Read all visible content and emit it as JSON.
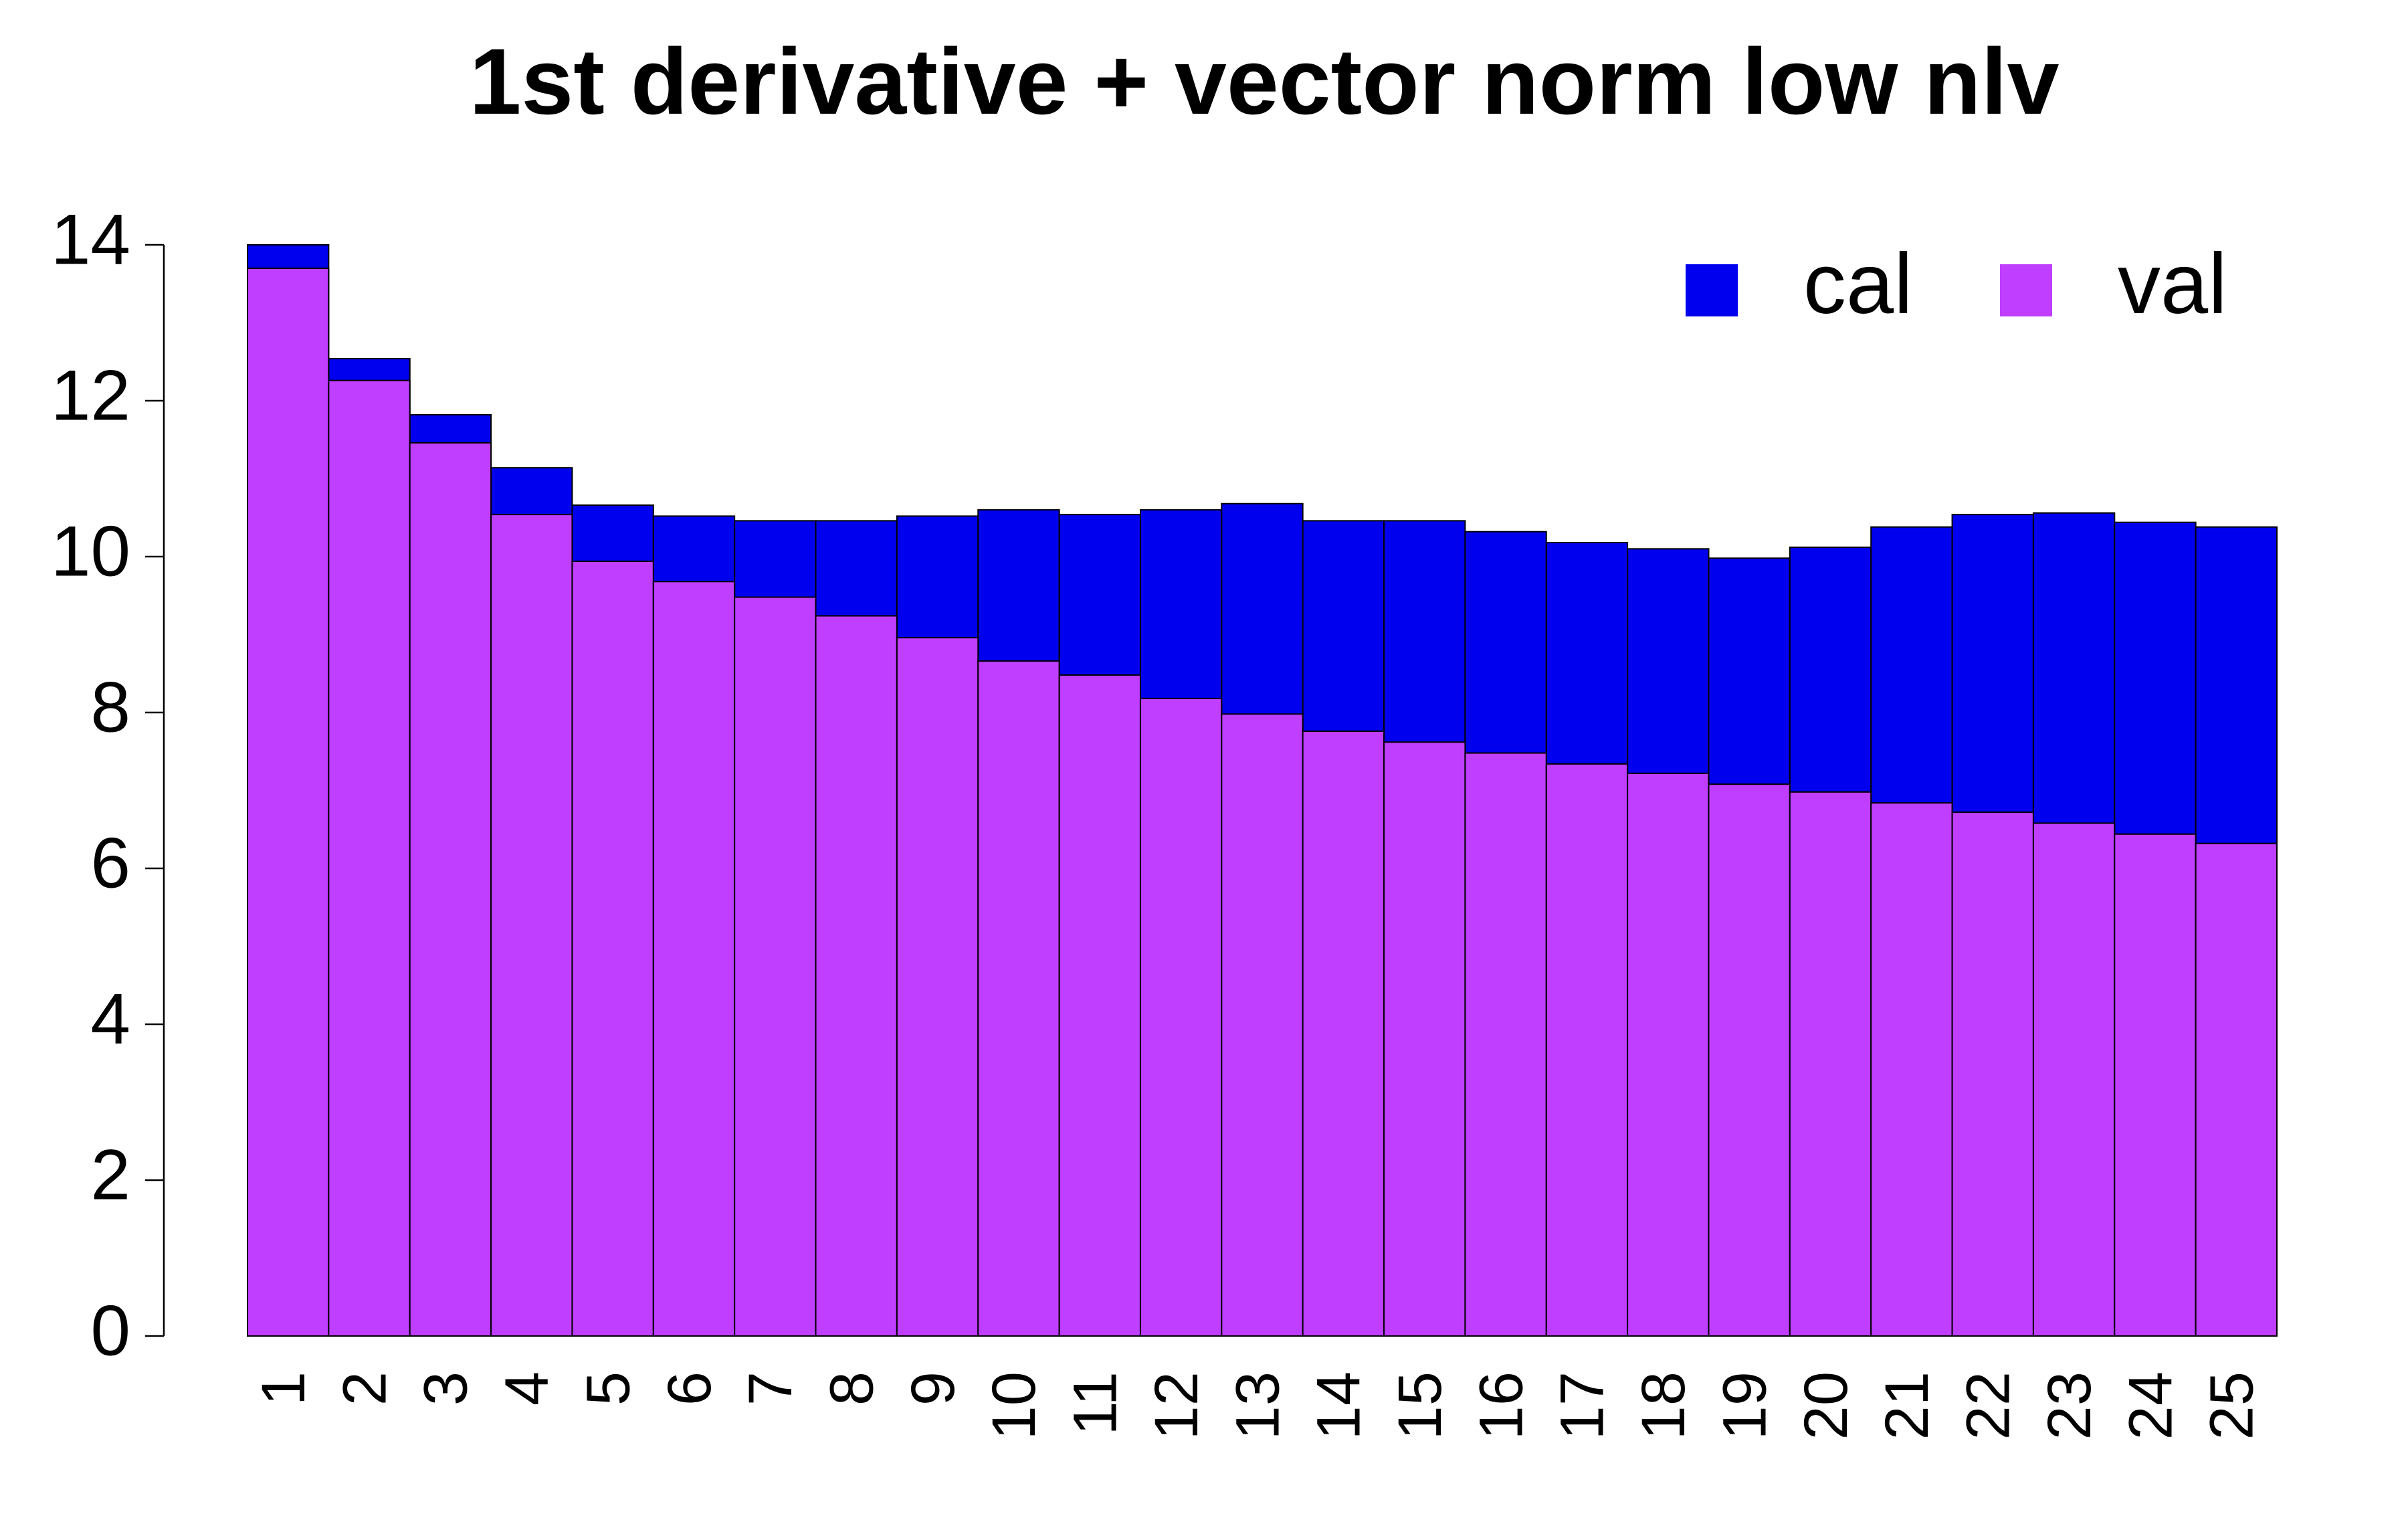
{
  "chart_data": {
    "type": "bar",
    "title": "1st derivative + vector norm low nlv",
    "categories": [
      "1",
      "2",
      "3",
      "4",
      "5",
      "6",
      "7",
      "8",
      "9",
      "10",
      "11",
      "12",
      "13",
      "14",
      "15",
      "16",
      "17",
      "18",
      "19",
      "20",
      "21",
      "22",
      "23",
      "24",
      "25"
    ],
    "series": [
      {
        "name": "cal",
        "color": "#0000ee",
        "values": [
          14.0,
          12.54,
          11.82,
          11.14,
          10.66,
          10.52,
          10.46,
          10.46,
          10.52,
          10.6,
          10.54,
          10.6,
          10.68,
          10.46,
          10.46,
          10.32,
          10.18,
          10.1,
          9.98,
          10.12,
          10.38,
          10.54,
          10.56,
          10.44,
          10.38
        ]
      },
      {
        "name": "val",
        "color": "#bf3eff",
        "values": [
          13.7,
          12.26,
          11.46,
          10.54,
          9.94,
          9.68,
          9.48,
          9.24,
          8.96,
          8.66,
          8.48,
          8.18,
          7.98,
          7.76,
          7.62,
          7.48,
          7.34,
          7.22,
          7.08,
          6.98,
          6.84,
          6.72,
          6.58,
          6.44,
          6.32
        ]
      }
    ],
    "ylim": [
      0,
      14
    ],
    "yticks": [
      0,
      2,
      4,
      6,
      8,
      10,
      12,
      14
    ],
    "legend": "top-right",
    "grid": false
  }
}
